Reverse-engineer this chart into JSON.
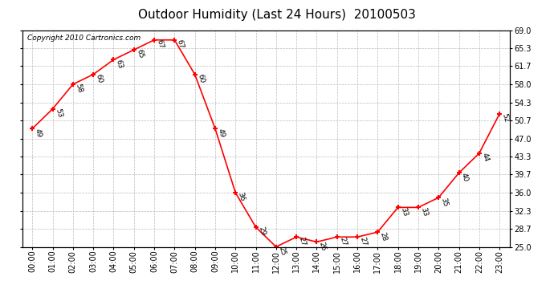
{
  "title": "Outdoor Humidity (Last 24 Hours)  20100503",
  "copyright_text": "Copyright 2010 Cartronics.com",
  "hours": [
    "00:00",
    "01:00",
    "02:00",
    "03:00",
    "04:00",
    "05:00",
    "06:00",
    "07:00",
    "08:00",
    "09:00",
    "10:00",
    "11:00",
    "12:00",
    "13:00",
    "14:00",
    "15:00",
    "16:00",
    "17:00",
    "18:00",
    "19:00",
    "20:00",
    "21:00",
    "22:00",
    "23:00"
  ],
  "values": [
    49,
    53,
    58,
    60,
    63,
    65,
    67,
    67,
    60,
    49,
    36,
    29,
    25,
    27,
    26,
    27,
    27,
    28,
    33,
    33,
    35,
    40,
    44,
    52
  ],
  "ylim": [
    25.0,
    69.0
  ],
  "yticks": [
    25.0,
    28.7,
    32.3,
    36.0,
    39.7,
    43.3,
    47.0,
    50.7,
    54.3,
    58.0,
    61.7,
    65.3,
    69.0
  ],
  "ytick_labels": [
    "25.0",
    "28.7",
    "32.3",
    "36.0",
    "39.7",
    "43.3",
    "47.0",
    "50.7",
    "54.3",
    "58.0",
    "61.7",
    "65.3",
    "69.0"
  ],
  "line_color": "red",
  "marker_color": "red",
  "grid_color": "#bbbbbb",
  "bg_color": "#ffffff",
  "title_fontsize": 11,
  "copyright_fontsize": 6.5,
  "tick_label_fontsize": 7,
  "value_label_fontsize": 6.5
}
